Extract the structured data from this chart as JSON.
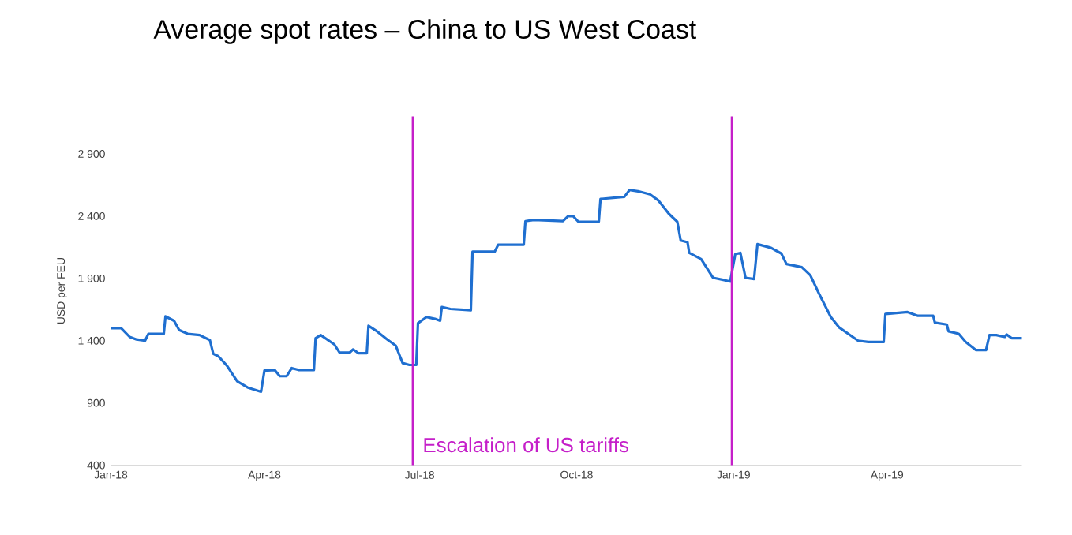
{
  "chart_data": {
    "type": "line",
    "title": "Average spot rates – China to US West Coast",
    "ylabel": "USD per FEU",
    "x": [
      "2018-01-01",
      "2018-01-07",
      "2018-01-12",
      "2018-01-16",
      "2018-01-21",
      "2018-01-23",
      "2018-02-01",
      "2018-02-02",
      "2018-02-07",
      "2018-02-10",
      "2018-02-15",
      "2018-02-22",
      "2018-02-28",
      "2018-03-02",
      "2018-03-05",
      "2018-03-10",
      "2018-03-16",
      "2018-03-22",
      "2018-03-30",
      "2018-04-01",
      "2018-04-07",
      "2018-04-10",
      "2018-04-14",
      "2018-04-17",
      "2018-04-21",
      "2018-04-30",
      "2018-05-01",
      "2018-05-04",
      "2018-05-12",
      "2018-05-15",
      "2018-05-21",
      "2018-05-23",
      "2018-05-26",
      "2018-05-31",
      "2018-06-01",
      "2018-06-06",
      "2018-06-12",
      "2018-06-17",
      "2018-06-21",
      "2018-06-25",
      "2018-06-29",
      "2018-06-30",
      "2018-07-05",
      "2018-07-10",
      "2018-07-13",
      "2018-07-14",
      "2018-07-19",
      "2018-07-31",
      "2018-08-01",
      "2018-08-14",
      "2018-08-16",
      "2018-08-31",
      "2018-09-01",
      "2018-09-06",
      "2018-09-23",
      "2018-09-26",
      "2018-09-29",
      "2018-10-02",
      "2018-10-14",
      "2018-10-15",
      "2018-10-29",
      "2018-11-01",
      "2018-11-06",
      "2018-11-13",
      "2018-11-18",
      "2018-11-24",
      "2018-11-29",
      "2018-12-01",
      "2018-12-05",
      "2018-12-06",
      "2018-12-13",
      "2018-12-20",
      "2018-12-27",
      "2018-12-30",
      "2019-01-02",
      "2019-01-05",
      "2019-01-08",
      "2019-01-13",
      "2019-01-15",
      "2019-01-23",
      "2019-01-29",
      "2019-02-01",
      "2019-02-10",
      "2019-02-15",
      "2019-02-20",
      "2019-02-27",
      "2019-03-04",
      "2019-03-15",
      "2019-03-21",
      "2019-03-30",
      "2019-03-31",
      "2019-04-13",
      "2019-04-19",
      "2019-04-28",
      "2019-04-29",
      "2019-05-06",
      "2019-05-07",
      "2019-05-13",
      "2019-05-17",
      "2019-05-23",
      "2019-05-29",
      "2019-05-31",
      "2019-06-04",
      "2019-06-09",
      "2019-06-10",
      "2019-06-13",
      "2019-06-19"
    ],
    "series": [
      {
        "color": "#1f6fd0",
        "values": [
          1500,
          1500,
          1430,
          1410,
          1400,
          1455,
          1455,
          1595,
          1560,
          1485,
          1455,
          1445,
          1405,
          1295,
          1275,
          1200,
          1075,
          1025,
          990,
          1160,
          1165,
          1115,
          1115,
          1180,
          1165,
          1165,
          1420,
          1445,
          1370,
          1305,
          1305,
          1330,
          1300,
          1300,
          1520,
          1475,
          1410,
          1360,
          1220,
          1205,
          1205,
          1540,
          1590,
          1575,
          1560,
          1670,
          1655,
          1645,
          2115,
          2115,
          2170,
          2170,
          2360,
          2370,
          2360,
          2400,
          2400,
          2355,
          2355,
          2538,
          2555,
          2610,
          2600,
          2575,
          2525,
          2420,
          2355,
          2205,
          2190,
          2105,
          2055,
          1905,
          1885,
          1875,
          2095,
          2105,
          1905,
          1895,
          2175,
          2145,
          2100,
          2015,
          1990,
          1925,
          1780,
          1590,
          1505,
          1400,
          1390,
          1390,
          1615,
          1630,
          1600,
          1600,
          1545,
          1530,
          1475,
          1455,
          1390,
          1325,
          1325,
          1445,
          1445,
          1430,
          1450,
          1420,
          1420
        ]
      }
    ],
    "xlim": [
      "2018-01-01",
      "2019-06-19"
    ],
    "xticks": [
      {
        "value": "2018-01-01",
        "label": "Jan-18"
      },
      {
        "value": "2018-04-01",
        "label": "Apr-18"
      },
      {
        "value": "2018-07-01",
        "label": "Jul-18"
      },
      {
        "value": "2018-10-01",
        "label": "Oct-18"
      },
      {
        "value": "2019-01-01",
        "label": "Jan-19"
      },
      {
        "value": "2019-04-01",
        "label": "Apr-19"
      }
    ],
    "ylim": [
      400,
      3200
    ],
    "yticks": [
      400,
      900,
      {
        "value": 1400,
        "label": "1 400"
      },
      {
        "value": 1900,
        "label": "1 900"
      },
      {
        "value": 2400,
        "label": "2 400"
      },
      {
        "value": 2900,
        "label": "2 900"
      }
    ],
    "ref_lines": [
      {
        "axis": "x",
        "value": "2018-06-27",
        "color": "#c51fc9"
      },
      {
        "axis": "x",
        "value": "2018-12-31",
        "color": "#c51fc9"
      }
    ],
    "annotations": [
      "Escalation of US tariffs"
    ],
    "marker": "none",
    "line_style": "solid"
  }
}
